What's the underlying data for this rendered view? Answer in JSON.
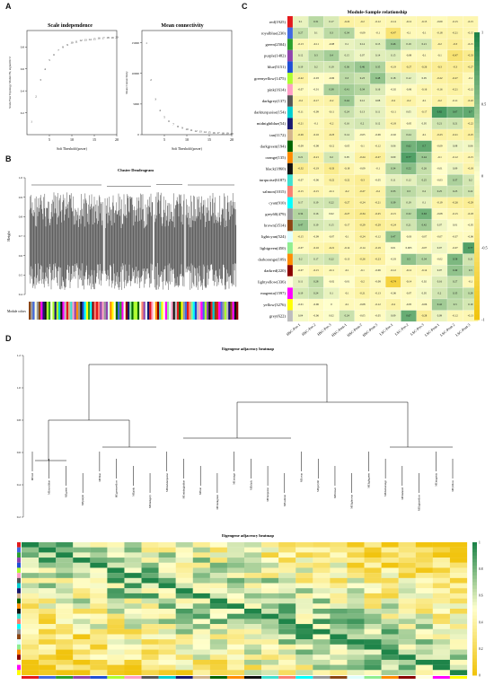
{
  "panels": {
    "a": "A",
    "b": "B",
    "c": "C",
    "d": "D"
  },
  "panel_a": {
    "left": {
      "title": "Scale independence",
      "xlabel": "Soft Threshold (power)",
      "ylabel": "Scale Free Topology Model Fit, signed R^2",
      "xticks": [
        "5",
        "10",
        "15",
        "20"
      ],
      "yticks": [
        "0.2",
        "0.4",
        "0.6",
        "0.8"
      ]
    },
    "right": {
      "title": "Mean connectivity",
      "xlabel": "Soft Threshold (power)",
      "ylabel": "Mean Connectivity",
      "xticks": [
        "5",
        "10",
        "15",
        "20"
      ],
      "yticks": [
        "0",
        "5000",
        "10000",
        "15000"
      ]
    }
  },
  "panel_b": {
    "title": "Cluster Dendrogram",
    "ylabel": "Height",
    "yticks": [
      "0.4",
      "0.5",
      "0.6",
      "0.7",
      "0.8",
      "0.9",
      "1.0"
    ],
    "bar_label": "Module colors"
  },
  "panel_c": {
    "title": "Module-Sample relationship",
    "scale_ticks": [
      "1",
      "0.5",
      "0",
      "-0.5",
      "-1"
    ],
    "colors": {
      "pos": "#1e8449",
      "mid": "#ffffcc",
      "neg": "#f1c40f"
    }
  },
  "panel_d": {
    "dendro_title": "Eigengene adjacency heatmap",
    "heatmap_title": "Eigengene adjacency heatmap",
    "dendro_yticks": [
      "1.2",
      "1.0",
      "0.8",
      "0.6",
      "0.4",
      "0.2"
    ],
    "scale_ticks": [
      "1",
      "0.8",
      "0.6",
      "0.4",
      "0.2",
      "0"
    ]
  },
  "chart_data": [
    {
      "type": "scatter",
      "title": "Scale independence",
      "xlabel": "Soft Threshold (power)",
      "ylabel": "Scale Free Topology Model Fit, signed R^2",
      "xlim": [
        0,
        20
      ],
      "ylim": [
        0,
        0.95
      ],
      "x": [
        1,
        2,
        3,
        4,
        5,
        6,
        7,
        8,
        9,
        10,
        11,
        12,
        13,
        14,
        15,
        16,
        17,
        18,
        19,
        20
      ],
      "y": [
        0.12,
        0.35,
        0.5,
        0.6,
        0.68,
        0.73,
        0.77,
        0.8,
        0.82,
        0.84,
        0.85,
        0.86,
        0.865,
        0.87,
        0.875,
        0.88,
        0.88,
        0.885,
        0.885,
        0.89
      ],
      "point_labels": [
        "1",
        "2",
        "3",
        "4",
        "5",
        "6",
        "7",
        "8",
        "9",
        "10",
        "11",
        "12",
        "13",
        "14",
        "15",
        "16",
        "17",
        "18",
        "19",
        "20"
      ]
    },
    {
      "type": "scatter",
      "title": "Mean connectivity",
      "xlabel": "Soft Threshold (power)",
      "ylabel": "Mean Connectivity",
      "xlim": [
        0,
        20
      ],
      "ylim": [
        0,
        17000
      ],
      "x": [
        1,
        2,
        3,
        4,
        5,
        6,
        7,
        8,
        9,
        10,
        11,
        12,
        13,
        14,
        15,
        16,
        17,
        18,
        19,
        20
      ],
      "y": [
        15000,
        9000,
        5800,
        4000,
        2900,
        2200,
        1700,
        1350,
        1100,
        900,
        750,
        620,
        520,
        450,
        390,
        340,
        300,
        270,
        240,
        210
      ],
      "point_labels": [
        "1",
        "2",
        "3",
        "4",
        "5",
        "6",
        "7",
        "8",
        "9",
        "10",
        "11",
        "12",
        "13",
        "14",
        "15",
        "16",
        "17",
        "18",
        "19",
        "20"
      ]
    },
    {
      "type": "heatmap",
      "title": "Module-Sample relationship",
      "rows": [
        "red(1925)",
        "royalblue(230)",
        "green(2504)",
        "purple(1482)",
        "blue(5151)",
        "greenyellow(1475)",
        "pink(1614)",
        "darkgrey(137)",
        "darkturquoise(154)",
        "midnightblue(54)",
        "tan(1172)",
        "darkgreen(194)",
        "orange(135)",
        "black(1860)",
        "turquoise(6187)",
        "salmon(1015)",
        "cyan(910)",
        "grey60(479)",
        "brown(3514)",
        "lightcyan(524)",
        "lightgreen(450)",
        "darkorange(109)",
        "darkred(220)",
        "lightyellow(336)",
        "magenta(1597)",
        "yellow(3276)",
        "grey(622)"
      ],
      "row_colors": [
        "#e41a1c",
        "#4169e1",
        "#2ca02c",
        "#8e44ad",
        "#1f4fd6",
        "#adff2f",
        "#ff9ec6",
        "#555555",
        "#00ced1",
        "#191970",
        "#d2b48c",
        "#006400",
        "#ff8c00",
        "#111111",
        "#40e0d0",
        "#fa8072",
        "#00ffff",
        "#999999",
        "#8b4513",
        "#e0ffff",
        "#90ee90",
        "#ff8c00",
        "#8b0000",
        "#ffffe0",
        "#ff00ff",
        "#ffff00",
        "#bdbdbd"
      ],
      "columns": [
        "HSC-Pre-1",
        "HSC-Pre-2",
        "HSC-Pre-3",
        "HSC-Post-1",
        "HSC-Post-2",
        "HSC-Post-3",
        "LSC-Pre-1",
        "LSC-Pre-2",
        "LSC-Pre-3",
        "LSC-Post-1",
        "LSC-Post-2",
        "LSC-Post-3"
      ],
      "values": [
        [
          0.1,
          0.31,
          0.17,
          -0.22,
          -0.2,
          -0.12,
          -0.14,
          -0.12,
          -0.15,
          -0.09,
          -0.15,
          -0.15
        ],
        [
          0.27,
          0.1,
          0.3,
          0.34,
          -0.09,
          -0.1,
          -0.47,
          -0.1,
          -0.1,
          -0.18,
          -0.21,
          -0.15
        ],
        [
          -0.13,
          -0.11,
          -0.08,
          0.1,
          0.14,
          0.15,
          0.46,
          0.19,
          0.21,
          -0.2,
          -0.3,
          -0.15
        ],
        [
          0.12,
          0.3,
          0.4,
          0.15,
          0.07,
          0.14,
          0.15,
          -0.08,
          -0.1,
          -0.1,
          -0.47,
          -0.33
        ],
        [
          0.19,
          0.2,
          0.19,
          0.36,
          0.46,
          0.35,
          -0.19,
          -0.27,
          -0.26,
          -0.3,
          -0.3,
          -0.27
        ],
        [
          -0.22,
          -0.03,
          -0.06,
          0.3,
          0.23,
          0.48,
          0.18,
          0.12,
          0.05,
          -0.22,
          -0.27,
          -0.1
        ],
        [
          -0.07,
          -0.01,
          0.38,
          0.41,
          0.34,
          0.16,
          -0.02,
          -0.06,
          -0.16,
          -0.16,
          -0.21,
          -0.12
        ],
        [
          -0.2,
          -0.17,
          -0.2,
          0.44,
          0.12,
          0.08,
          -0.2,
          -0.2,
          -0.1,
          -0.2,
          -0.11,
          -0.22
        ],
        [
          -0.11,
          -0.09,
          -0.11,
          0.24,
          0.13,
          0.11,
          -0.11,
          0.05,
          -0.17,
          0.82,
          0.67,
          0.7
        ],
        [
          -0.21,
          -0.1,
          -0.2,
          0.16,
          0.2,
          0.12,
          -0.18,
          -0.05,
          0.05,
          0.21,
          0.21,
          -0.22
        ],
        [
          -0.26,
          -0.16,
          -0.23,
          0.14,
          -0.05,
          -0.06,
          -0.02,
          0.24,
          -0.1,
          -0.23,
          -0.21,
          -0.25
        ],
        [
          -0.09,
          -0.08,
          -0.12,
          -0.05,
          -0.1,
          -0.12,
          0.06,
          0.62,
          0.7,
          -0.09,
          0.08,
          0.06
        ],
        [
          0.21,
          -0.21,
          0.2,
          0.05,
          -0.24,
          -0.27,
          0.09,
          0.77,
          0.44,
          -0.1,
          -0.12,
          -0.15
        ],
        [
          -0.32,
          -0.19,
          -0.33,
          -0.18,
          -0.09,
          -0.1,
          0.34,
          0.52,
          0.26,
          -0.01,
          0.09,
          -0.18
        ],
        [
          -0.07,
          -0.06,
          -0.22,
          -0.22,
          -0.3,
          -0.05,
          0.11,
          0.12,
          0.25,
          -0.03,
          0.37,
          0.2
        ],
        [
          -0.15,
          -0.15,
          -0.11,
          -0.2,
          -0.27,
          -0.2,
          0.33,
          0.3,
          0.2,
          0.25,
          0.25,
          0.22
        ],
        [
          0.17,
          0.19,
          0.22,
          -0.27,
          -0.24,
          -0.21,
          0.39,
          0.19,
          0.1,
          -0.19,
          -0.26,
          -0.29
        ],
        [
          0.34,
          0.16,
          0.02,
          -0.27,
          -0.34,
          -0.25,
          -0.15,
          0.32,
          0.63,
          -0.08,
          -0.15,
          -0.18
        ],
        [
          0.47,
          0.19,
          0.15,
          -0.17,
          -0.29,
          -0.29,
          -0.24,
          0.21,
          0.42,
          0.07,
          0.01,
          -0.05
        ],
        [
          -0.15,
          -0.09,
          -0.07,
          -0.1,
          -0.24,
          -0.12,
          0.47,
          -0.03,
          -0.07,
          -0.07,
          -0.07,
          -0.06
        ],
        [
          -0.07,
          -0.16,
          -0.21,
          -0.14,
          -0.14,
          -0.19,
          0.01,
          0.003,
          -0.07,
          0.07,
          -0.07,
          0.77
        ],
        [
          0.2,
          0.17,
          0.22,
          -0.13,
          -0.26,
          -0.23,
          -0.03,
          0.5,
          0.34,
          -0.02,
          0.58,
          0.21
        ],
        [
          -0.07,
          -0.15,
          -0.11,
          -0.1,
          -0.1,
          -0.06,
          -0.12,
          -0.12,
          -0.14,
          0.07,
          0.49,
          0.3
        ],
        [
          0.11,
          0.28,
          -0.02,
          -0.01,
          -0.2,
          -0.08,
          -0.74,
          -0.14,
          0.02,
          0.16,
          0.27,
          -0.1
        ],
        [
          0.19,
          0.24,
          0.1,
          -0.1,
          -0.21,
          -0.13,
          -0.06,
          -0.07,
          0.05,
          0.2,
          0.35,
          0.28
        ],
        [
          -0.01,
          -0.06,
          -0.0,
          -0.1,
          -0.08,
          -0.12,
          -0.2,
          -0.05,
          -0.06,
          0.42,
          0.3,
          0.19
        ],
        [
          0.04,
          -0.06,
          0.02,
          0.24,
          -0.05,
          -0.05,
          0.09,
          0.67,
          -0.28,
          0.09,
          -0.12,
          -0.13
        ]
      ],
      "scale": [
        -1,
        1
      ]
    },
    {
      "type": "heatmap",
      "title": "Eigengene adjacency heatmap",
      "rows": [
        "MEred",
        "MEroyalblue",
        "MEgreen",
        "MEpurple",
        "MEblue",
        "MEgreenyellow",
        "MEpink",
        "MEdarkgrey",
        "MEdarkturquoise",
        "MEmidnightblue",
        "MEtan",
        "MEdarkgreen",
        "MEorange",
        "MEblack",
        "MEturquoise",
        "MEsalmon",
        "MEcyan",
        "MEgrey60",
        "MEbrown",
        "MElightcyan",
        "MElightgreen",
        "MEdarkorange",
        "MEdarkred",
        "MElightyellow",
        "MEmagenta",
        "MEyellow"
      ],
      "columns": [
        "MEred",
        "MEroyalblue",
        "MEgreen",
        "MEpurple",
        "MEblue",
        "MEgreenyellow",
        "MEpink",
        "MEdarkgrey",
        "MEdarkturquoise",
        "MEmidnightblue",
        "MEtan",
        "MEdarkgreen",
        "MEorange",
        "MEblack",
        "MEturquoise",
        "MEsalmon",
        "MEcyan",
        "MEgrey60",
        "MEbrown",
        "MElightcyan",
        "MElightgreen",
        "MEdarkorange",
        "MEdarkred",
        "MElightyellow",
        "MEmagenta",
        "MEyellow"
      ],
      "scale": [
        0,
        1
      ]
    }
  ]
}
